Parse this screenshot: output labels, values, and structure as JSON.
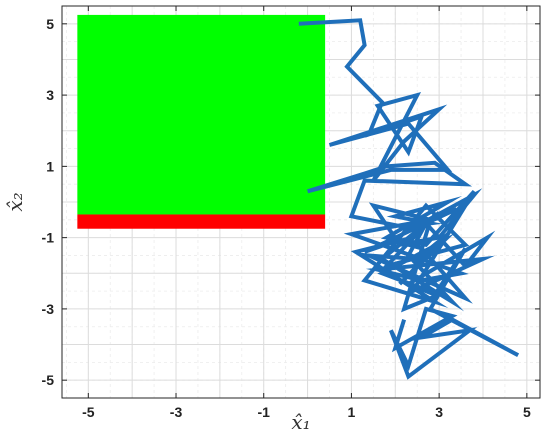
{
  "chart_data": {
    "type": "line",
    "xlabel": "x̂₁",
    "ylabel": "x̂₂",
    "xlim": [
      -5.6,
      5.3
    ],
    "ylim": [
      -5.5,
      5.5
    ],
    "xticks": [
      -5,
      -3,
      -1,
      1,
      3,
      5
    ],
    "yticks": [
      -5,
      -3,
      -1,
      1,
      3,
      5
    ],
    "grid": true,
    "grid_minor": true,
    "colors": {
      "green_region": "#00ff00",
      "red_region": "#ff0000",
      "trajectory": "#1f6fba"
    },
    "regions": [
      {
        "x0": -5.25,
        "x1": 0.4,
        "y0": -0.35,
        "y1": 5.25,
        "color": "#00ff00"
      },
      {
        "x0": -5.25,
        "x1": 0.4,
        "y0": -0.75,
        "y1": -0.35,
        "color": "#ff0000"
      }
    ],
    "series": [
      {
        "x": [
          -0.2,
          1.2,
          1.3,
          0.9,
          1.7,
          1.4,
          2.6,
          2.3,
          1.6,
          2.5,
          1.5,
          2.2,
          3.0,
          0.5,
          2.3,
          3.2,
          1.9,
          0.0,
          1.3,
          1.8,
          2.9,
          3.6,
          1.3,
          1.0,
          2.2,
          2.8,
          2.0,
          3.2,
          1.8,
          2.7,
          3.8,
          2.4,
          4.0,
          1.6,
          2.6,
          3.5,
          1.0,
          2.8,
          1.5,
          2.1,
          3.0,
          3.8,
          2.3,
          3.4,
          1.3,
          2.0,
          2.6,
          3.6,
          1.4,
          2.5,
          3.2,
          2.1,
          3.1,
          1.7,
          3.0,
          2.2,
          2.8,
          1.8,
          3.6,
          2.7,
          1.3,
          2.9,
          2.0,
          1.1,
          2.4,
          3.0,
          1.7,
          3.3,
          2.3,
          2.7,
          3.6,
          4.1,
          2.3,
          2.9,
          3.6,
          2.8,
          4.8,
          3.3,
          2.6,
          3.7,
          2.3,
          1.9,
          2.3,
          2.7,
          3.3,
          2.0,
          2.2
        ],
        "y": [
          5.0,
          5.1,
          4.4,
          3.8,
          2.8,
          1.9,
          2.4,
          1.4,
          2.7,
          3.0,
          0.6,
          1.7,
          2.6,
          1.6,
          2.2,
          0.9,
          0.9,
          0.3,
          0.8,
          1.0,
          1.1,
          0.5,
          0.6,
          -0.4,
          -0.7,
          -0.6,
          -0.4,
          0.0,
          -1.0,
          -1.2,
          0.3,
          -2.5,
          -1.6,
          -1.9,
          -2.2,
          -2.0,
          -0.9,
          -0.5,
          -0.1,
          -1.2,
          -1.0,
          0.2,
          -0.8,
          -0.2,
          -1.4,
          -1.1,
          -1.3,
          -2.7,
          -1.5,
          -1.6,
          -0.9,
          -2.3,
          -1.1,
          -2.0,
          -2.6,
          -3.0,
          -0.5,
          -1.8,
          -1.2,
          -0.1,
          -2.2,
          -2.8,
          -2.1,
          -1.4,
          -1.0,
          -0.3,
          -1.6,
          -2.8,
          -1.5,
          -0.6,
          -1.8,
          -1.0,
          -2.3,
          -2.6,
          -1.3,
          -3.0,
          -4.3,
          -3.3,
          -3.8,
          -3.6,
          -4.9,
          -3.6,
          -4.6,
          -3.0,
          -3.2,
          -4.1,
          -3.3
        ]
      }
    ]
  }
}
